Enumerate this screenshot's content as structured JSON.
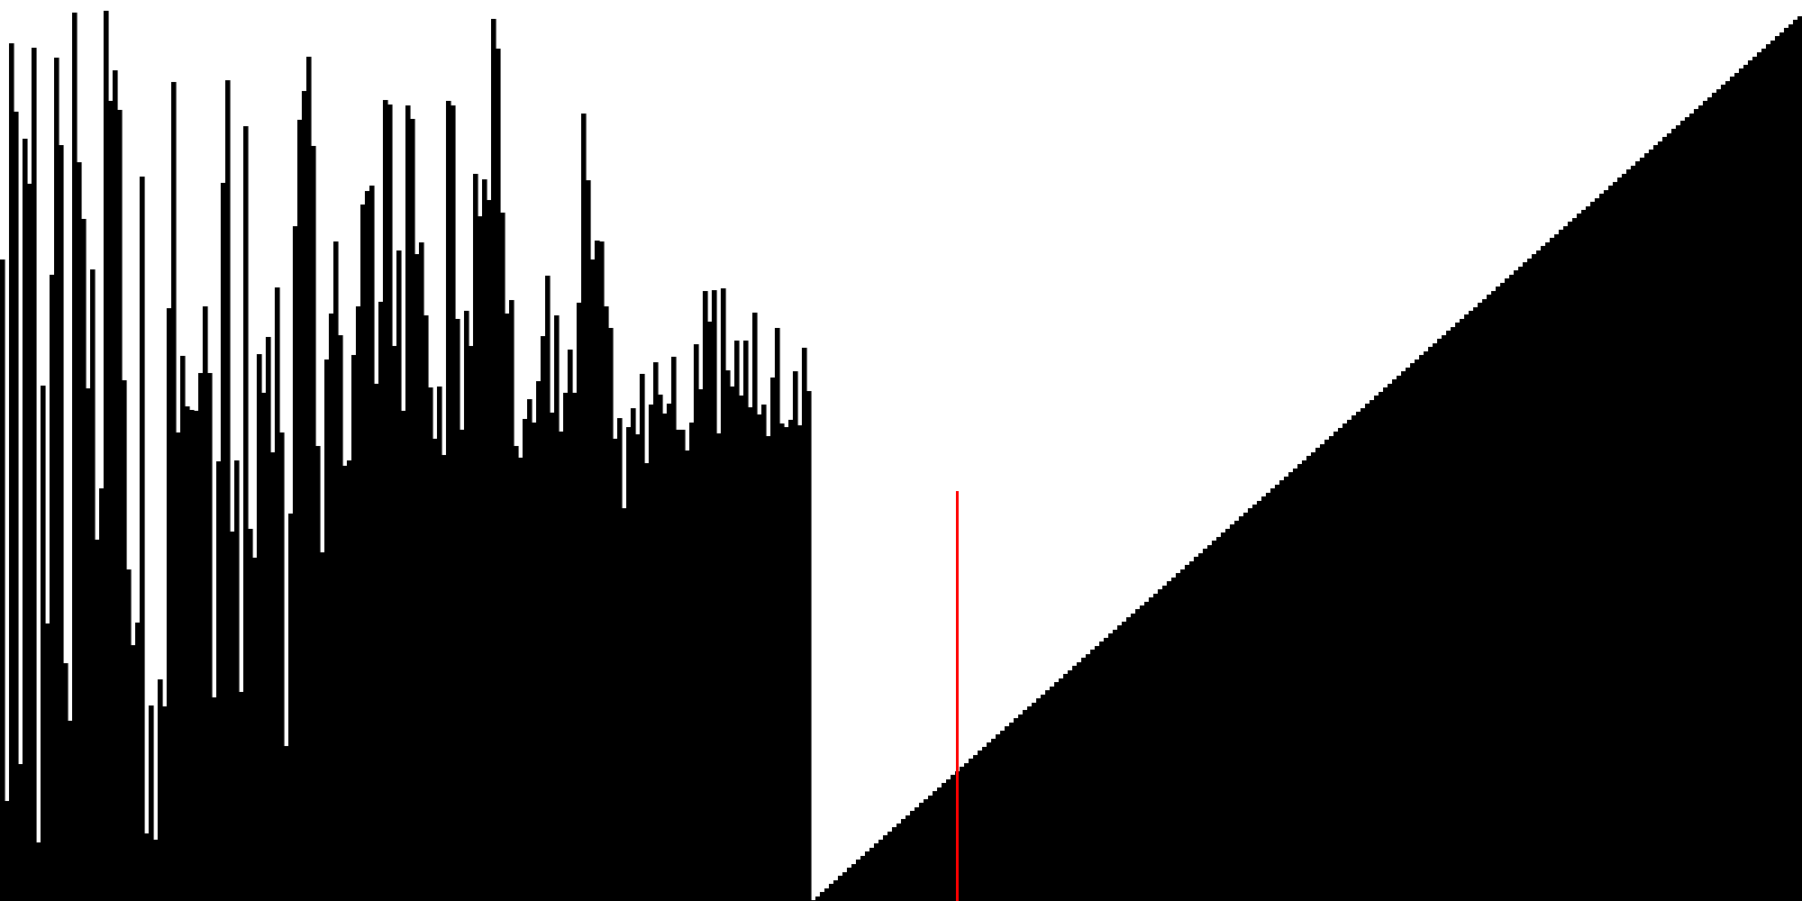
{
  "visualization": {
    "kind": "array-sort-visualization",
    "background_color": "#ffffff",
    "bar_color": "#000000",
    "marker_color": "#ff0000",
    "total_elements": 400,
    "unsorted_count": 180,
    "sorted_count": 220,
    "value_max": 1000,
    "unsorted_values": [
      712,
      111,
      952,
      876,
      152,
      846,
      796,
      947,
      65,
      572,
      308,
      695,
      936,
      839,
      264,
      200,
      986,
      820,
      757,
      569,
      701,
      401,
      458,
      988,
      888,
      922,
      878,
      578,
      368,
      284,
      309,
      804,
      75,
      217,
      68,
      246,
      216,
      658,
      909,
      520,
      605,
      549,
      545,
      544,
      586,
      660,
      586,
      226,
      488,
      797,
      911,
      410,
      489,
      232,
      860,
      413,
      381,
      607,
      564,
      626,
      498,
      681,
      520,
      172,
      430,
      749,
      867,
      899,
      937,
      838,
      505,
      387,
      601,
      652,
      732,
      628,
      483,
      489,
      606,
      660,
      773,
      788,
      794,
      574,
      665,
      889,
      884,
      616,
      722,
      544,
      883,
      868,
      718,
      731,
      650,
      570,
      513,
      571,
      495,
      888,
      883,
      646,
      523,
      655,
      616,
      807,
      760,
      801,
      778,
      979,
      946,
      764,
      652,
      667,
      505,
      492,
      535,
      557,
      531,
      577,
      627,
      694,
      542,
      650,
      521,
      564,
      612,
      564,
      664,
      874,
      800,
      712,
      733,
      732,
      660,
      636,
      513,
      536,
      436,
      526,
      547,
      518,
      585,
      486,
      551,
      598,
      562,
      541,
      552,
      604,
      523,
      523,
      500,
      531,
      618,
      568,
      677,
      643,
      678,
      519,
      680,
      589,
      571,
      622,
      561,
      622,
      548,
      653,
      540,
      551,
      516,
      581,
      636,
      530,
      526,
      534,
      588,
      528,
      614,
      566
    ],
    "sorted_range": [
      1,
      982
    ],
    "marker_index": 212
  }
}
